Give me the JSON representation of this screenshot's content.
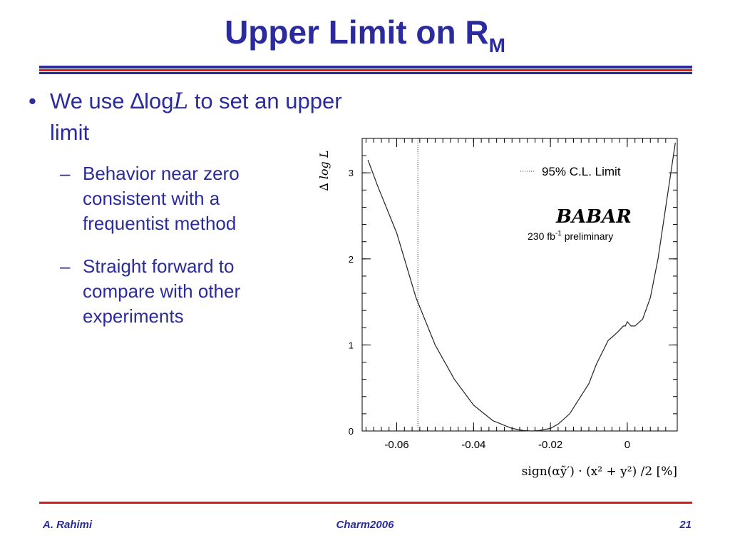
{
  "slide": {
    "title_main": "Upper Limit on R",
    "title_sub": "M",
    "bullet": {
      "prefix": "We use ",
      "delta": "∆",
      "log": "log",
      "script_l": "L",
      "suffix": " to set an upper limit"
    },
    "sub_bullets": [
      "Behavior near zero consistent with a frequentist method",
      "Straight forward to compare with other experiments"
    ],
    "footer": {
      "left": "A. Rahimi",
      "center": "Charm2006",
      "right": "21"
    }
  },
  "chart_data": {
    "type": "line",
    "xlabel": "sign(αỹ′) · (x² + y²) /2 [%]",
    "ylabel": "∆ log L",
    "xlim": [
      -0.069,
      0.013
    ],
    "ylim": [
      0,
      3.4
    ],
    "x_ticks": [
      "-0.06",
      "-0.04",
      "-0.02",
      "0"
    ],
    "x_tick_values": [
      -0.06,
      -0.04,
      -0.02,
      0
    ],
    "y_ticks": [
      "0",
      "1",
      "2",
      "3"
    ],
    "y_tick_values": [
      0,
      1,
      2,
      3
    ],
    "limit_line_x": -0.0545,
    "legend_label": "95% C.L. Limit",
    "legend_position": "top-right",
    "experiment_logo": "BABAR",
    "lumi_text": "230 fb",
    "lumi_sup": "-1",
    "lumi_suffix": " preliminary",
    "series": [
      {
        "x": [
          -0.0675,
          -0.065,
          -0.06,
          -0.055,
          -0.05,
          -0.045,
          -0.04,
          -0.035,
          -0.03,
          -0.027,
          -0.025,
          -0.023,
          -0.02,
          -0.018,
          -0.015,
          -0.01,
          -0.008,
          -0.005,
          -0.0025,
          -0.001,
          -0.0005,
          0,
          0.001,
          0.002,
          0.004,
          0.006,
          0.008,
          0.01,
          0.012,
          0.0125
        ],
        "y": [
          3.15,
          2.85,
          2.3,
          1.55,
          1.0,
          0.6,
          0.3,
          0.12,
          0.03,
          0.005,
          0.0,
          0.005,
          0.03,
          0.08,
          0.2,
          0.55,
          0.78,
          1.05,
          1.15,
          1.22,
          1.22,
          1.27,
          1.22,
          1.22,
          1.3,
          1.55,
          2.0,
          2.6,
          3.2,
          3.35
        ]
      }
    ]
  }
}
